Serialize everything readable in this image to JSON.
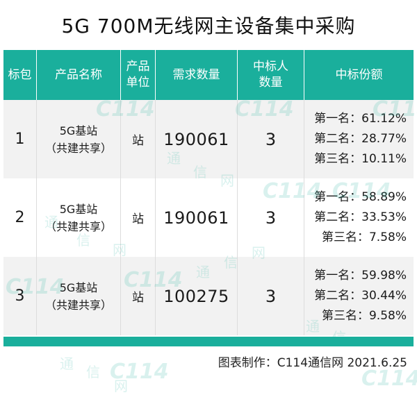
{
  "title": "5G 700M无线网主设备集中采购",
  "headers": {
    "package": "标包",
    "product_name": "产品名称",
    "unit": "产品\n单位",
    "quantity": "需求数量",
    "winners": "中标人\n数量",
    "share": "中标份额"
  },
  "rows": [
    {
      "package": "1",
      "product_line1": "5G基站",
      "product_line2": "（共建共享）",
      "unit": "站",
      "quantity": "190061",
      "winners": "3",
      "shares": [
        "第一名：61.12%",
        "第二名：28.77%",
        "第三名：10.11%"
      ]
    },
    {
      "package": "2",
      "product_line1": "5G基站",
      "product_line2": "（共建共享）",
      "unit": "站",
      "quantity": "190061",
      "winners": "3",
      "shares": [
        "第一名：58.89%",
        "第二名：33.53%",
        "第三名：7.58%"
      ]
    },
    {
      "package": "3",
      "product_line1": "5G基站",
      "product_line2": "（共建共享）",
      "unit": "站",
      "quantity": "100275",
      "winners": "3",
      "shares": [
        "第一名：59.98%",
        "第二名：30.44%",
        "第三名：9.58%"
      ]
    }
  ],
  "footer": "图表制作：C114通信网  2021.6.25",
  "watermark": {
    "logo": "C114",
    "chars": [
      "通",
      "信",
      "网"
    ]
  },
  "colors": {
    "accent": "#1aaf9c",
    "row_alt": "#f2f2f2"
  }
}
